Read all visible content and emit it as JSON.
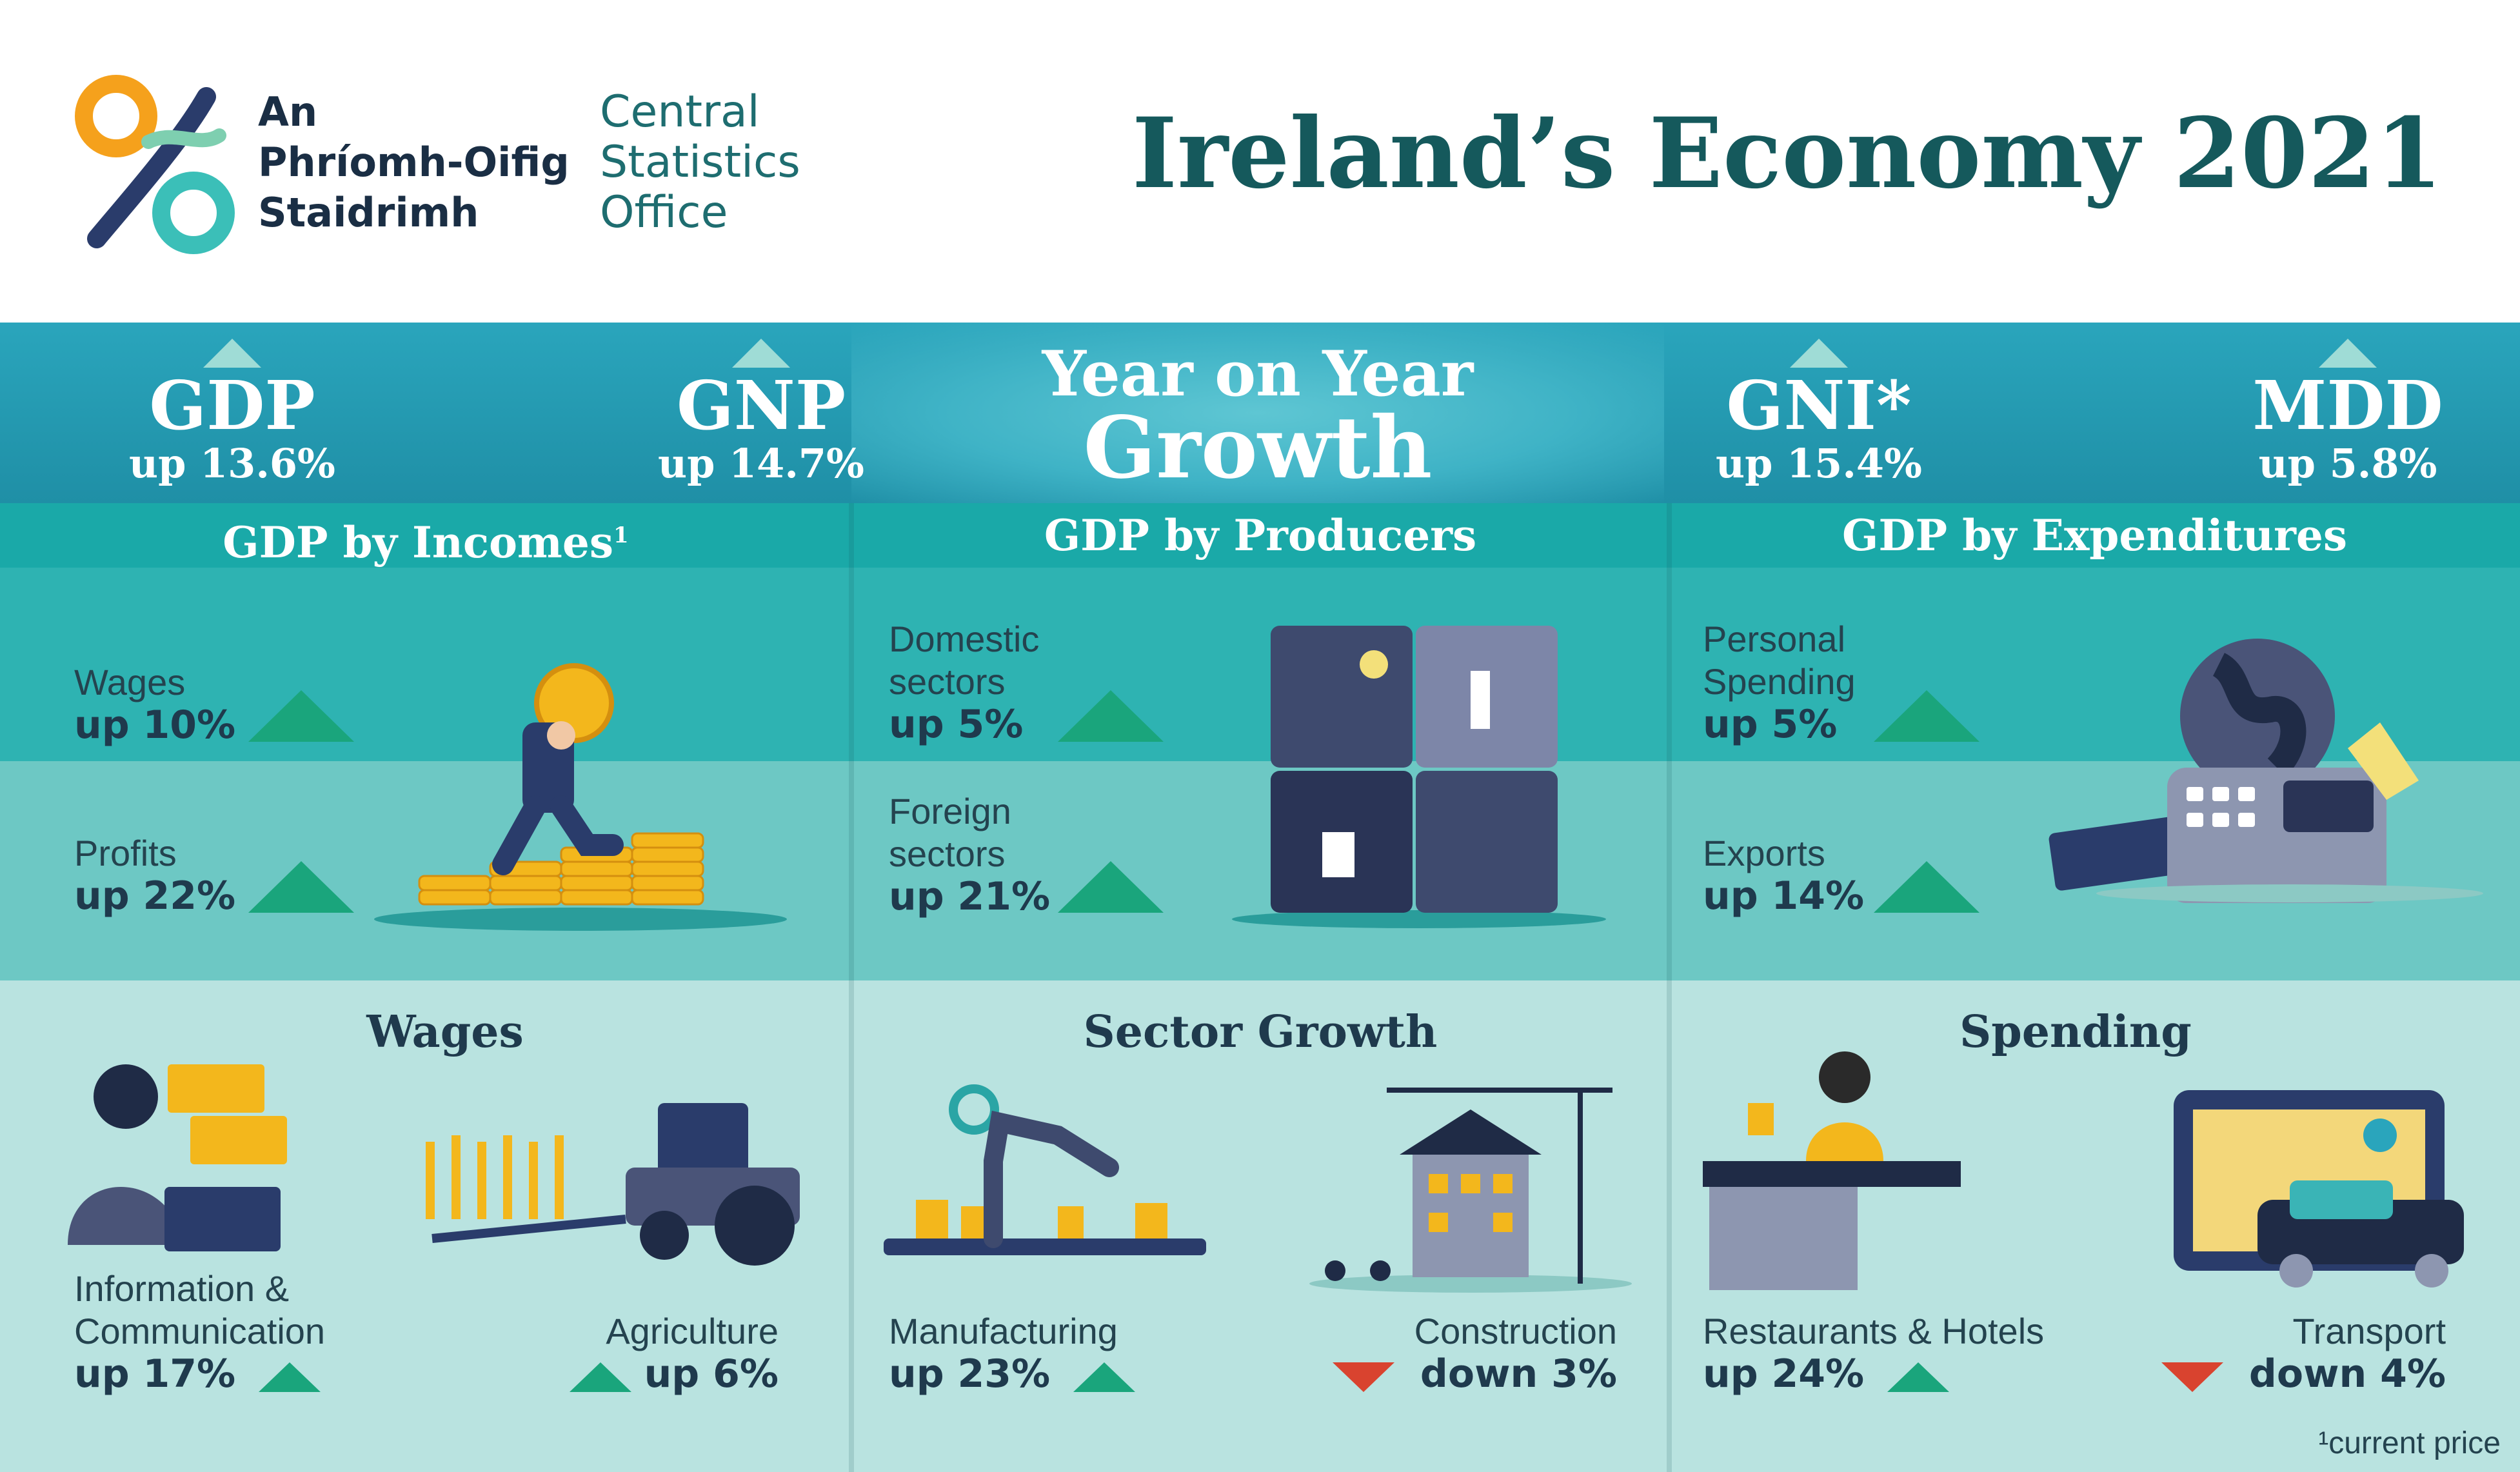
{
  "header": {
    "org_irish_1": "An",
    "org_irish_2": "Phríomh-Oifig",
    "org_irish_3": "Staidrimh",
    "org_english_1": "Central",
    "org_english_2": "Statistics",
    "org_english_3": "Office",
    "title": "Ireland’s Economy 2021"
  },
  "growth": {
    "title_line1": "Year on Year",
    "title_line2": "Growth",
    "metrics": [
      {
        "name": "GDP",
        "value": "up 13.6%",
        "direction": "up"
      },
      {
        "name": "GNP",
        "value": "up 14.7%",
        "direction": "up"
      },
      {
        "name": "GNI*",
        "value": "up 15.4%",
        "direction": "up"
      },
      {
        "name": "MDD",
        "value": "up 5.8%",
        "direction": "up"
      }
    ]
  },
  "incomes": {
    "title": "GDP by Incomes",
    "title_sup": "1",
    "item1_label": "Wages",
    "item1_value": "up 10%",
    "item2_label": "Profits",
    "item2_value": "up 22%",
    "section": "Wages",
    "low1_line1": "Information &",
    "low1_line2": "Communication",
    "low1_value": "up 17%",
    "low2_label": "Agriculture",
    "low2_value": "up 6%"
  },
  "producers": {
    "title": "GDP by Producers",
    "item1_line1": "Domestic",
    "item1_line2": "sectors",
    "item1_value": "up 5%",
    "item2_line1": "Foreign",
    "item2_line2": "sectors",
    "item2_value": "up 21%",
    "section": "Sector Growth",
    "low1_label": "Manufacturing",
    "low1_value": "up 23%",
    "low2_label": "Construction",
    "low2_value": "down 3%"
  },
  "expenditures": {
    "title": "GDP by Expenditures",
    "item1_line1": "Personal",
    "item1_line2": "Spending",
    "item1_value": "up 5%",
    "item2_label": "Exports",
    "item2_value": "up 14%",
    "section": "Spending",
    "low1_label": "Restaurants & Hotels",
    "low1_value": "up 24%",
    "low2_label": "Transport",
    "low2_value": "down 4%"
  },
  "footnote": "¹current price",
  "colors": {
    "teal_dark": "#15595c",
    "navy": "#1f3a4d",
    "up_green": "#1aa57c",
    "down_red": "#d9432f",
    "bar_teal": "#1aa9a8"
  }
}
